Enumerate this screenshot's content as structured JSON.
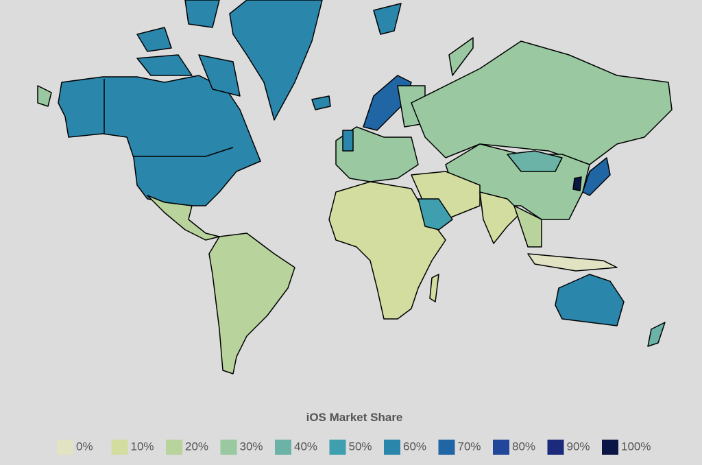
{
  "legend": {
    "title": "iOS Market Share",
    "items": [
      {
        "label": "0%",
        "color": "#e1e3c3"
      },
      {
        "label": "10%",
        "color": "#d3dd9f"
      },
      {
        "label": "20%",
        "color": "#b8d39b"
      },
      {
        "label": "30%",
        "color": "#9ac9a1"
      },
      {
        "label": "40%",
        "color": "#6ab3a6"
      },
      {
        "label": "50%",
        "color": "#3f9fae"
      },
      {
        "label": "60%",
        "color": "#2b86ab"
      },
      {
        "label": "70%",
        "color": "#2166a4"
      },
      {
        "label": "80%",
        "color": "#22479a"
      },
      {
        "label": "90%",
        "color": "#1b2a7a"
      },
      {
        "label": "100%",
        "color": "#0b1647"
      }
    ]
  }
}
